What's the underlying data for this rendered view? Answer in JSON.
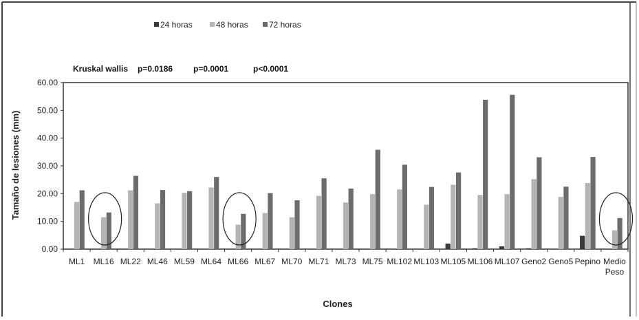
{
  "chart_data": {
    "type": "bar",
    "title": "",
    "xlabel": "Clones",
    "ylabel": "Tamaño de lesiones (mm)",
    "annotation": {
      "label": "Kruskal wallis",
      "p1": "p=0.0186",
      "p2": "p=0.0001",
      "p3": "p<0.0001"
    },
    "ylim": [
      0,
      60
    ],
    "yticks": [
      "0.00",
      "10.00",
      "20.00",
      "30.00",
      "40.00",
      "50.00",
      "60.00"
    ],
    "ytick_values": [
      0,
      10,
      20,
      30,
      40,
      50,
      60
    ],
    "grid": false,
    "legend_position": "top",
    "categories": [
      "ML1",
      "ML16",
      "ML22",
      "ML46",
      "ML59",
      "ML64",
      "ML66",
      "ML67",
      "ML70",
      "ML71",
      "ML73",
      "ML75",
      "ML102",
      "ML103",
      "ML105",
      "ML106",
      "ML107",
      "Geno2",
      "Geno5",
      "Pepino",
      "Medio Peso"
    ],
    "category_lines": [
      [
        "ML1"
      ],
      [
        "ML16"
      ],
      [
        "ML22"
      ],
      [
        "ML46"
      ],
      [
        "ML59"
      ],
      [
        "ML64"
      ],
      [
        "ML66"
      ],
      [
        "ML67"
      ],
      [
        "ML70"
      ],
      [
        "ML71"
      ],
      [
        "ML73"
      ],
      [
        "ML75"
      ],
      [
        "ML102"
      ],
      [
        "ML103"
      ],
      [
        "ML105"
      ],
      [
        "ML106"
      ],
      [
        "ML107"
      ],
      [
        "Geno2"
      ],
      [
        "Geno5"
      ],
      [
        "Pepino"
      ],
      [
        "Medio",
        "Peso"
      ]
    ],
    "series": [
      {
        "name": "24 horas",
        "color": "#3a3a3a",
        "values": [
          0,
          0,
          0,
          0,
          0,
          0,
          0,
          0,
          0,
          0,
          0,
          0,
          0,
          0,
          2.0,
          0.3,
          1.0,
          0.3,
          0,
          4.8,
          0
        ]
      },
      {
        "name": "48 horas",
        "color": "#b4b4b4",
        "values": [
          17.0,
          11.5,
          21.2,
          16.5,
          20.3,
          22.2,
          8.8,
          13.0,
          11.5,
          19.2,
          16.8,
          19.8,
          21.5,
          16.0,
          23.2,
          19.5,
          19.8,
          25.2,
          18.8,
          23.8,
          6.8
        ]
      },
      {
        "name": "72 horas",
        "color": "#6c6c6c",
        "values": [
          21.2,
          13.2,
          26.4,
          21.3,
          20.9,
          26.0,
          12.7,
          20.2,
          17.6,
          25.5,
          21.8,
          35.8,
          30.4,
          22.4,
          27.6,
          53.8,
          55.6,
          33.1,
          22.5,
          33.2,
          11.2
        ]
      }
    ],
    "circled_categories": [
      "ML16",
      "ML66",
      "Medio Peso"
    ]
  }
}
